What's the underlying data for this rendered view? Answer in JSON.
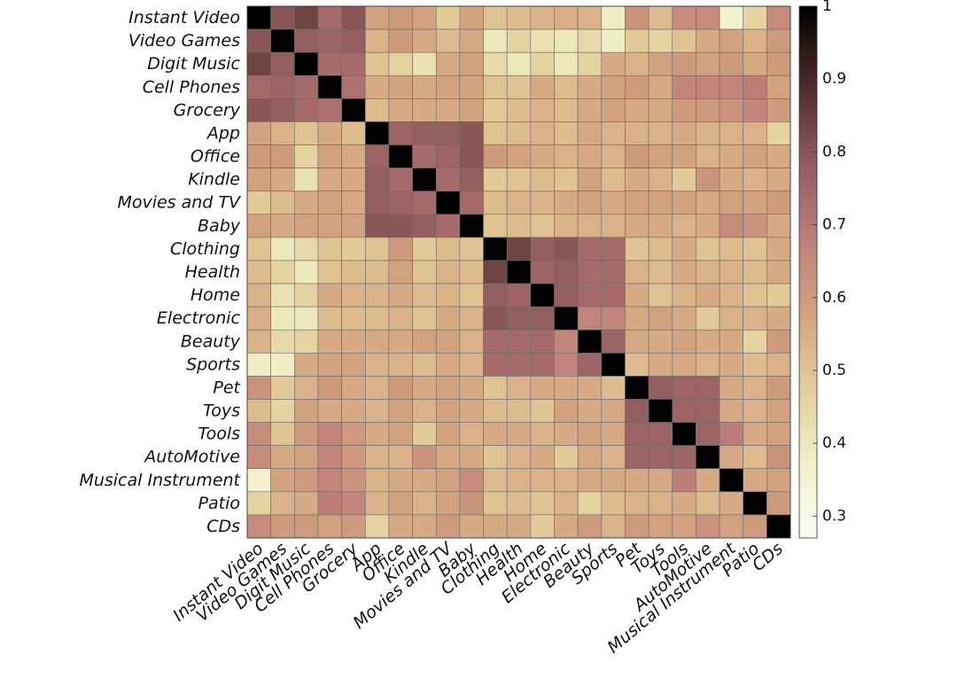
{
  "chart_data": {
    "type": "heatmap",
    "title": "",
    "xlabel": "",
    "ylabel": "",
    "categories": [
      "Instant Video",
      "Video Games",
      "Digit Music",
      "Cell Phones",
      "Grocery",
      "App",
      "Office",
      "Kindle",
      "Movies and TV",
      "Baby",
      "Clothing",
      "Health",
      "Home",
      "Electronic",
      "Beauty",
      "Sports",
      "Pet",
      "Toys",
      "Tools",
      "AutoMotive",
      "Musical Instrument",
      "Patio",
      "CDs"
    ],
    "colorbar": {
      "min": 0.27,
      "max": 1.0,
      "ticks": [
        0.3,
        0.4,
        0.5,
        0.6,
        0.7,
        0.8,
        0.9,
        1
      ]
    },
    "values": [
      [
        1.0,
        0.8,
        0.84,
        0.74,
        0.8,
        0.58,
        0.6,
        0.58,
        0.48,
        0.58,
        0.5,
        0.52,
        0.54,
        0.55,
        0.54,
        0.38,
        0.62,
        0.52,
        0.64,
        0.64,
        0.36,
        0.46,
        0.64
      ],
      [
        0.8,
        1.0,
        0.78,
        0.76,
        0.78,
        0.54,
        0.6,
        0.56,
        0.52,
        0.56,
        0.4,
        0.46,
        0.42,
        0.4,
        0.44,
        0.38,
        0.48,
        0.46,
        0.5,
        0.56,
        0.58,
        0.54,
        0.6
      ],
      [
        0.84,
        0.78,
        1.0,
        0.74,
        0.74,
        0.5,
        0.46,
        0.42,
        0.56,
        0.58,
        0.44,
        0.4,
        0.46,
        0.4,
        0.46,
        0.56,
        0.54,
        0.58,
        0.6,
        0.58,
        0.6,
        0.56,
        0.6
      ],
      [
        0.74,
        0.76,
        0.74,
        1.0,
        0.72,
        0.56,
        0.58,
        0.56,
        0.58,
        0.58,
        0.5,
        0.5,
        0.56,
        0.52,
        0.56,
        0.58,
        0.6,
        0.56,
        0.66,
        0.66,
        0.66,
        0.68,
        0.58
      ],
      [
        0.8,
        0.78,
        0.74,
        0.72,
        1.0,
        0.52,
        0.56,
        0.56,
        0.56,
        0.58,
        0.48,
        0.52,
        0.54,
        0.52,
        0.56,
        0.58,
        0.56,
        0.56,
        0.6,
        0.6,
        0.62,
        0.66,
        0.6
      ],
      [
        0.58,
        0.54,
        0.5,
        0.56,
        0.52,
        1.0,
        0.76,
        0.78,
        0.78,
        0.8,
        0.5,
        0.52,
        0.54,
        0.52,
        0.56,
        0.54,
        0.54,
        0.54,
        0.56,
        0.54,
        0.54,
        0.54,
        0.46
      ],
      [
        0.6,
        0.6,
        0.46,
        0.58,
        0.56,
        0.76,
        1.0,
        0.74,
        0.76,
        0.8,
        0.6,
        0.58,
        0.56,
        0.54,
        0.56,
        0.54,
        0.6,
        0.58,
        0.58,
        0.54,
        0.56,
        0.58,
        0.56
      ],
      [
        0.58,
        0.56,
        0.42,
        0.56,
        0.56,
        0.78,
        0.74,
        1.0,
        0.74,
        0.78,
        0.48,
        0.5,
        0.52,
        0.5,
        0.58,
        0.52,
        0.56,
        0.54,
        0.48,
        0.62,
        0.56,
        0.54,
        0.56
      ],
      [
        0.48,
        0.52,
        0.56,
        0.58,
        0.56,
        0.78,
        0.76,
        0.74,
        1.0,
        0.74,
        0.52,
        0.54,
        0.54,
        0.56,
        0.58,
        0.56,
        0.58,
        0.58,
        0.58,
        0.56,
        0.58,
        0.58,
        0.6
      ],
      [
        0.58,
        0.56,
        0.58,
        0.58,
        0.58,
        0.8,
        0.8,
        0.78,
        0.74,
        1.0,
        0.5,
        0.52,
        0.5,
        0.54,
        0.54,
        0.54,
        0.56,
        0.56,
        0.54,
        0.56,
        0.64,
        0.62,
        0.56
      ],
      [
        0.5,
        0.4,
        0.44,
        0.5,
        0.48,
        0.5,
        0.6,
        0.48,
        0.52,
        0.5,
        1.0,
        0.84,
        0.78,
        0.8,
        0.74,
        0.74,
        0.5,
        0.52,
        0.56,
        0.5,
        0.52,
        0.5,
        0.56
      ],
      [
        0.52,
        0.46,
        0.4,
        0.5,
        0.52,
        0.52,
        0.58,
        0.5,
        0.54,
        0.52,
        0.84,
        1.0,
        0.76,
        0.78,
        0.74,
        0.74,
        0.54,
        0.52,
        0.56,
        0.54,
        0.54,
        0.52,
        0.56
      ],
      [
        0.54,
        0.42,
        0.46,
        0.56,
        0.54,
        0.54,
        0.56,
        0.52,
        0.54,
        0.5,
        0.78,
        0.76,
        1.0,
        0.78,
        0.74,
        0.74,
        0.56,
        0.5,
        0.54,
        0.56,
        0.54,
        0.5,
        0.48
      ],
      [
        0.55,
        0.4,
        0.4,
        0.52,
        0.52,
        0.52,
        0.54,
        0.5,
        0.56,
        0.54,
        0.8,
        0.78,
        0.78,
        1.0,
        0.66,
        0.66,
        0.56,
        0.58,
        0.56,
        0.48,
        0.54,
        0.54,
        0.56
      ],
      [
        0.54,
        0.44,
        0.46,
        0.56,
        0.56,
        0.56,
        0.56,
        0.58,
        0.58,
        0.54,
        0.74,
        0.74,
        0.74,
        0.66,
        1.0,
        0.76,
        0.56,
        0.56,
        0.58,
        0.56,
        0.56,
        0.46,
        0.6
      ],
      [
        0.38,
        0.38,
        0.56,
        0.58,
        0.58,
        0.54,
        0.54,
        0.52,
        0.56,
        0.54,
        0.74,
        0.74,
        0.74,
        0.66,
        0.76,
        1.0,
        0.52,
        0.56,
        0.56,
        0.54,
        0.56,
        0.52,
        0.54
      ],
      [
        0.62,
        0.48,
        0.54,
        0.6,
        0.56,
        0.54,
        0.6,
        0.56,
        0.58,
        0.56,
        0.5,
        0.54,
        0.56,
        0.56,
        0.56,
        0.52,
        1.0,
        0.78,
        0.76,
        0.76,
        0.56,
        0.54,
        0.6
      ],
      [
        0.52,
        0.46,
        0.58,
        0.56,
        0.56,
        0.54,
        0.58,
        0.54,
        0.58,
        0.56,
        0.52,
        0.52,
        0.5,
        0.58,
        0.56,
        0.56,
        0.78,
        1.0,
        0.76,
        0.76,
        0.56,
        0.54,
        0.58
      ],
      [
        0.64,
        0.5,
        0.6,
        0.66,
        0.6,
        0.56,
        0.58,
        0.48,
        0.58,
        0.54,
        0.56,
        0.56,
        0.54,
        0.56,
        0.58,
        0.56,
        0.76,
        0.76,
        1.0,
        0.76,
        0.68,
        0.56,
        0.58
      ],
      [
        0.64,
        0.56,
        0.58,
        0.66,
        0.6,
        0.54,
        0.54,
        0.62,
        0.56,
        0.56,
        0.5,
        0.54,
        0.56,
        0.48,
        0.56,
        0.54,
        0.76,
        0.76,
        0.76,
        1.0,
        0.56,
        0.52,
        0.62
      ],
      [
        0.36,
        0.58,
        0.6,
        0.66,
        0.62,
        0.54,
        0.56,
        0.56,
        0.58,
        0.64,
        0.52,
        0.54,
        0.54,
        0.54,
        0.56,
        0.56,
        0.56,
        0.56,
        0.68,
        0.56,
        1.0,
        0.56,
        0.58
      ],
      [
        0.46,
        0.54,
        0.56,
        0.68,
        0.66,
        0.54,
        0.58,
        0.54,
        0.58,
        0.62,
        0.5,
        0.52,
        0.5,
        0.54,
        0.46,
        0.52,
        0.54,
        0.54,
        0.56,
        0.52,
        0.56,
        1.0,
        0.6
      ],
      [
        0.64,
        0.6,
        0.6,
        0.58,
        0.6,
        0.46,
        0.56,
        0.56,
        0.6,
        0.56,
        0.56,
        0.56,
        0.48,
        0.56,
        0.6,
        0.54,
        0.6,
        0.58,
        0.58,
        0.62,
        0.58,
        0.6,
        1.0
      ]
    ],
    "colormap": [
      "#fcfcf2",
      "#f0f0c8",
      "#e2cc98",
      "#d2a07e",
      "#bb7c7a",
      "#8e5a5a",
      "#4a2a28",
      "#000000"
    ],
    "grid": true,
    "legend": "colorbar-right"
  }
}
